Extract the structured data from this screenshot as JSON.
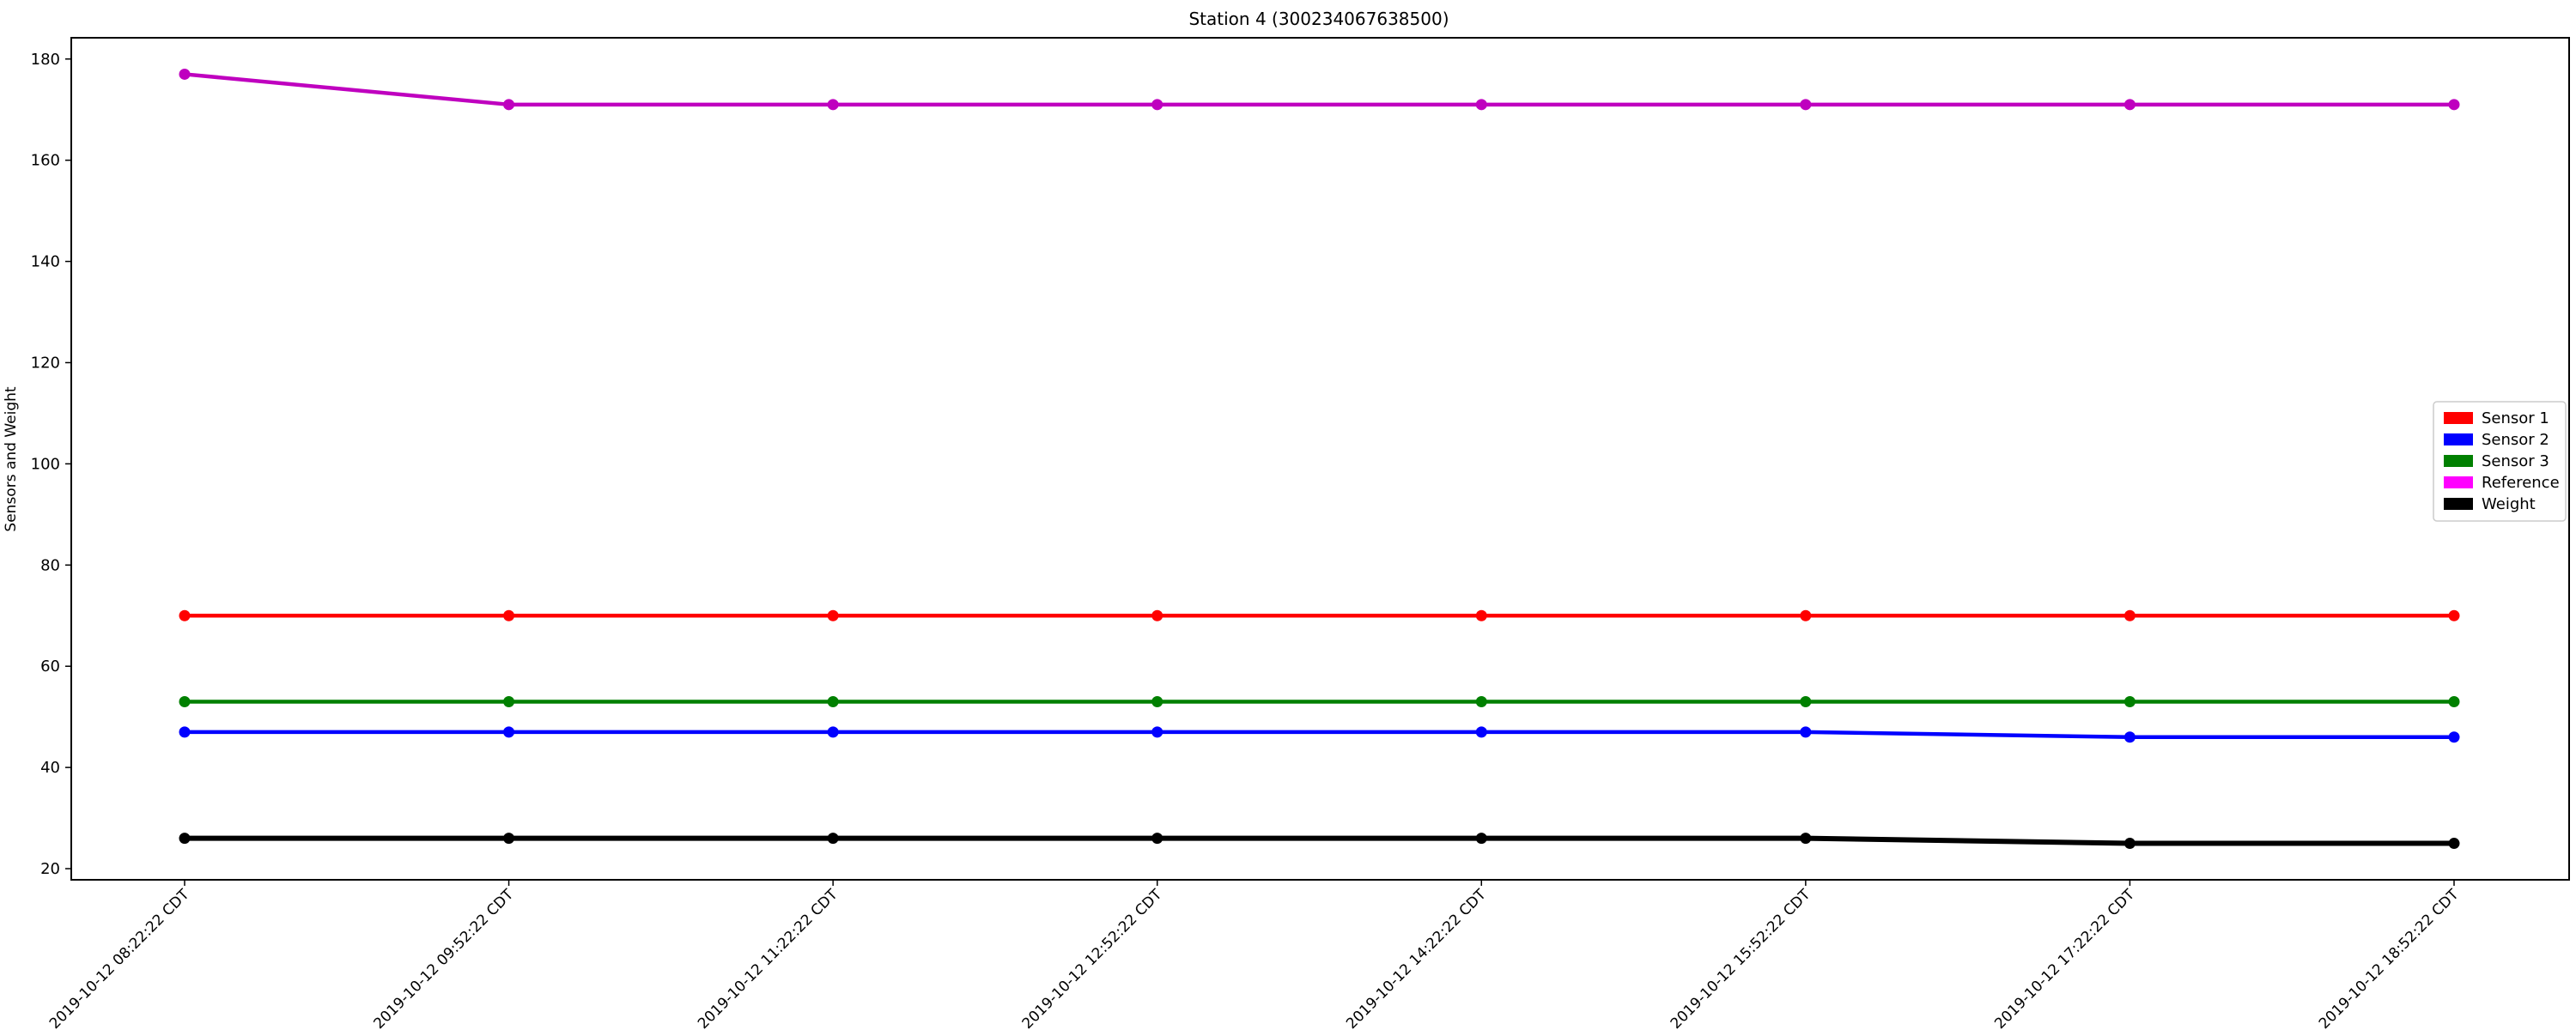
{
  "chart_data": {
    "type": "line",
    "title": "Station 4 (300234067638500)",
    "xlabel": "",
    "ylabel": "Sensors and Weight",
    "categories": [
      "2019-10-12 08:22:22 CDT",
      "2019-10-12 09:52:22 CDT",
      "2019-10-12 11:22:22 CDT",
      "2019-10-12 12:52:22 CDT",
      "2019-10-12 14:22:22 CDT",
      "2019-10-12 15:52:22 CDT",
      "2019-10-12 17:22:22 CDT",
      "2019-10-12 18:52:22 CDT"
    ],
    "ylim": [
      17.8,
      184.2
    ],
    "yticks": [
      20,
      40,
      60,
      80,
      100,
      120,
      140,
      160,
      180
    ],
    "grid": false,
    "legend_position": "center-right",
    "series": [
      {
        "name": "Sensor 1",
        "color": "#ff0000",
        "values": [
          70,
          70,
          70,
          70,
          70,
          70,
          70,
          70
        ]
      },
      {
        "name": "Sensor 2",
        "color": "#0000ff",
        "values": [
          47,
          47,
          47,
          47,
          47,
          47,
          46,
          46
        ]
      },
      {
        "name": "Sensor 3",
        "color": "#008000",
        "values": [
          53,
          53,
          53,
          53,
          53,
          53,
          53,
          53
        ]
      },
      {
        "name": "Reference",
        "color": "#ff00ff",
        "line_color": "#bf00bf",
        "values": [
          177,
          171,
          171,
          171,
          171,
          171,
          171,
          171
        ]
      },
      {
        "name": "Weight",
        "color": "#000000",
        "values": [
          26,
          26,
          26,
          26,
          26,
          26,
          25,
          25
        ]
      }
    ]
  }
}
